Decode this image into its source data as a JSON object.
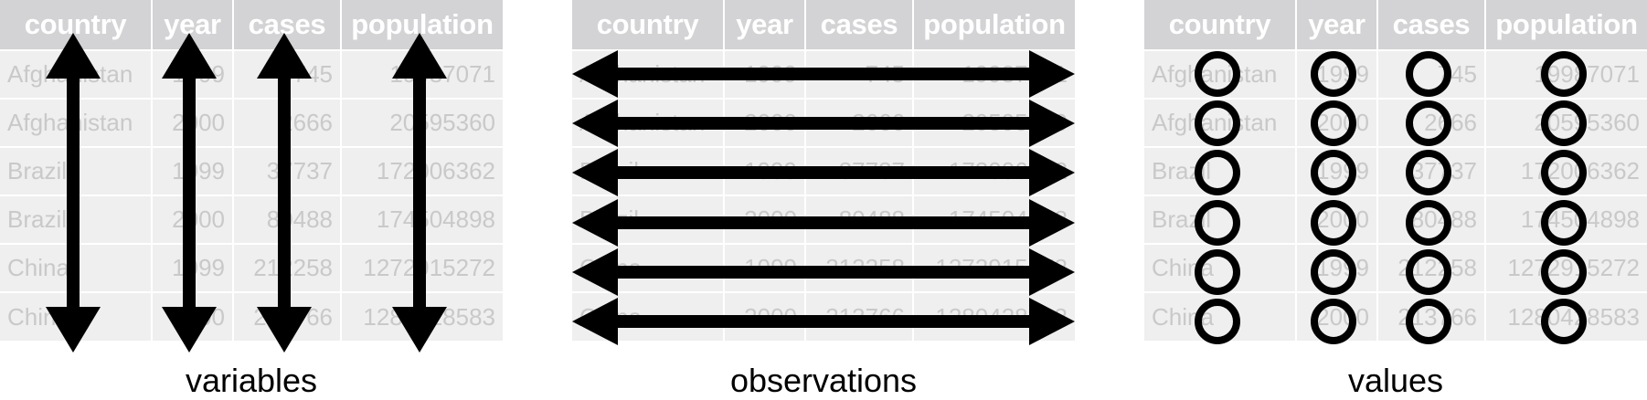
{
  "table": {
    "headers": [
      "country",
      "year",
      "cases",
      "population"
    ],
    "rows": [
      [
        "Afghanistan",
        "1999",
        "745",
        "19987071"
      ],
      [
        "Afghanistan",
        "2000",
        "2666",
        "20595360"
      ],
      [
        "Brazil",
        "1999",
        "37737",
        "172006362"
      ],
      [
        "Brazil",
        "2000",
        "80488",
        "174504898"
      ],
      [
        "China",
        "1999",
        "212258",
        "1272915272"
      ],
      [
        "China",
        "2000",
        "213766",
        "1280428583"
      ]
    ]
  },
  "panels": [
    {
      "caption": "variables",
      "annotation": "vertical double-headed arrows, one per column"
    },
    {
      "caption": "observations",
      "annotation": "horizontal double-headed arrows, one per row"
    },
    {
      "caption": "values",
      "annotation": "circle on every cell"
    }
  ],
  "colors": {
    "header_bg": "#d3d3d5",
    "header_text": "#ffffff",
    "cell_bg": "#eeefee",
    "cell_text": "#c8c9c8",
    "annotation": "#000000"
  }
}
